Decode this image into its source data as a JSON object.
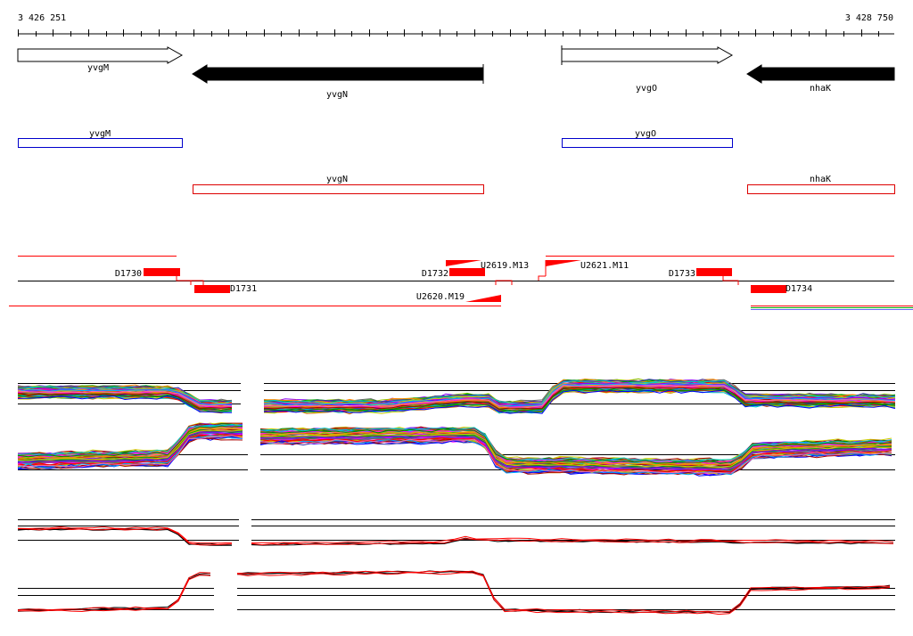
{
  "coords": {
    "start": "3 426 251",
    "end": "3 428 750"
  },
  "genes": [
    {
      "name": "yvgM",
      "strand": "+"
    },
    {
      "name": "yvgN",
      "strand": "-"
    },
    {
      "name": "yvgO",
      "strand": "+"
    },
    {
      "name": "nhaK",
      "strand": "-"
    }
  ],
  "annotation_boxes": [
    {
      "label": "yvgM",
      "strand": "+",
      "color": "#0000cc"
    },
    {
      "label": "yvgO",
      "strand": "+",
      "color": "#0000cc"
    },
    {
      "label": "yvgN",
      "strand": "-",
      "color": "#dd0000"
    },
    {
      "label": "nhaK",
      "strand": "-",
      "color": "#dd0000"
    }
  ],
  "features": {
    "D1730": "D1730",
    "D1731": "D1731",
    "D1732": "D1732",
    "D1733": "D1733",
    "D1734": "D1734",
    "U2619": "U2619.M13",
    "U2620": "U2620.M19",
    "U2621": "U2621.M11"
  },
  "colors": {
    "feature": "#ff0000",
    "plus_box": "#0000cc",
    "minus_box": "#dd0000",
    "gene_minus_fill": "#000000",
    "gene_plus_fill": "#ffffff"
  },
  "tracks": [
    {
      "id": "track-1",
      "trend": "high-early-then-low"
    },
    {
      "id": "track-2",
      "trend": "low-early-then-high"
    },
    {
      "id": "track-3",
      "trend": "averaged-high-early"
    },
    {
      "id": "track-4",
      "trend": "averaged-low-early"
    }
  ]
}
